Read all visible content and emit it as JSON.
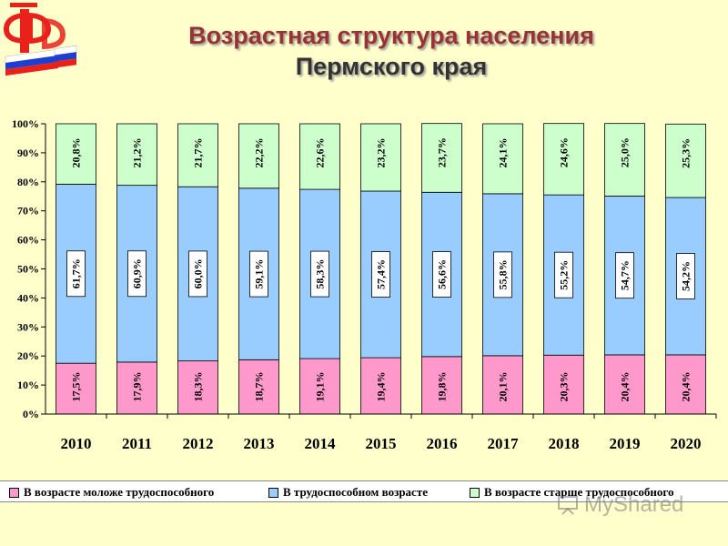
{
  "title": {
    "line1": "Возрастная структура населения",
    "line2": "Пермского края"
  },
  "watermark": "MyShared",
  "colors": {
    "background": "#ffffcc",
    "young": "#ff99cc",
    "working": "#99ccff",
    "old": "#ccffcc",
    "title": "#993333"
  },
  "chart_data": {
    "type": "bar",
    "stacked": true,
    "percent": true,
    "categories": [
      "2010",
      "2011",
      "2012",
      "2013",
      "2014",
      "2015",
      "2016",
      "2017",
      "2018",
      "2019",
      "2020"
    ],
    "series": [
      {
        "name": "В возрасте моложе трудоспособного",
        "values": [
          17.5,
          17.9,
          18.3,
          18.7,
          19.1,
          19.4,
          19.8,
          20.1,
          20.3,
          20.4,
          20.4
        ],
        "labels": [
          "17,5%",
          "17,9%",
          "18,3%",
          "18,7%",
          "19,1%",
          "19,4%",
          "19,8%",
          "20,1%",
          "20,3%",
          "20,4%",
          "20,4%"
        ]
      },
      {
        "name": "В трудоспособном возрасте",
        "values": [
          61.7,
          60.9,
          60.0,
          59.1,
          58.3,
          57.4,
          56.6,
          55.8,
          55.2,
          54.7,
          54.2
        ],
        "labels": [
          "61,7%",
          "60,9%",
          "60,0%",
          "59,1%",
          "58,3%",
          "57,4%",
          "56,6%",
          "55,8%",
          "55,2%",
          "54,7%",
          "54,2%"
        ]
      },
      {
        "name": "В возрасте старше трудоспособного",
        "values": [
          20.8,
          21.2,
          21.7,
          22.2,
          22.6,
          23.2,
          23.7,
          24.1,
          24.6,
          25.0,
          25.3
        ],
        "labels": [
          "20,8%",
          "21,2%",
          "21,7%",
          "22,2%",
          "22,6%",
          "23,2%",
          "23,7%",
          "24,1%",
          "24,6%",
          "25,0%",
          "25,3%"
        ]
      }
    ],
    "yticks": [
      "0%",
      "10%",
      "20%",
      "30%",
      "40%",
      "50%",
      "60%",
      "70%",
      "80%",
      "90%",
      "100%"
    ],
    "ylim": [
      0,
      100
    ],
    "grid": false,
    "legend_position": "bottom"
  }
}
